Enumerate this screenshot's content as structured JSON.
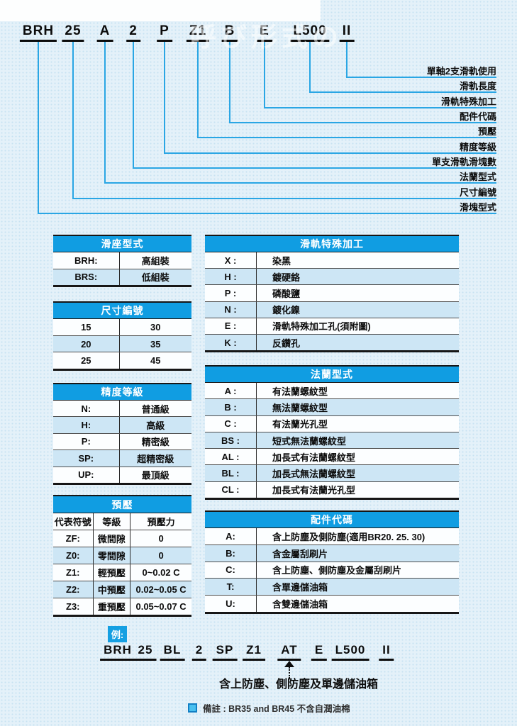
{
  "watermark": "呼び形式の",
  "model_code": {
    "segments": [
      {
        "code": "BRH",
        "label": "滑塊型式"
      },
      {
        "code": "25",
        "label": "尺寸編號"
      },
      {
        "code": "A",
        "label": "法蘭型式"
      },
      {
        "code": "2",
        "label": "單支滑軌滑塊數"
      },
      {
        "code": "P",
        "label": "精度等級"
      },
      {
        "code": "Z1",
        "label": "預壓"
      },
      {
        "code": "B",
        "label": "配件代碼"
      },
      {
        "code": "E",
        "label": "滑軌特殊加工"
      },
      {
        "code": "L500",
        "label": "滑軌長度"
      },
      {
        "code": "II",
        "label": "單軸2支滑軌使用"
      }
    ]
  },
  "tables": {
    "left": [
      {
        "key": "slider-type",
        "title": "滑座型式",
        "rows": [
          [
            "BRH:",
            "高組裝"
          ],
          [
            "BRS:",
            "低組裝"
          ]
        ]
      },
      {
        "key": "size-number",
        "title": "尺寸編號",
        "rows": [
          [
            "15",
            "30"
          ],
          [
            "20",
            "35"
          ],
          [
            "25",
            "45"
          ]
        ]
      },
      {
        "key": "accuracy-grade",
        "title": "精度等級",
        "rows": [
          [
            "N:",
            "普通級"
          ],
          [
            "H:",
            "高級"
          ],
          [
            "P:",
            "精密級"
          ],
          [
            "SP:",
            "超精密級"
          ],
          [
            "UP:",
            "最頂級"
          ]
        ]
      },
      {
        "key": "preload",
        "title": "預壓",
        "col_headers": [
          "代表符號",
          "等級",
          "預壓力"
        ],
        "rows": [
          [
            "ZF:",
            "微間隙",
            "0"
          ],
          [
            "Z0:",
            "零間隙",
            "0"
          ],
          [
            "Z1:",
            "輕預壓",
            "0~0.02 C"
          ],
          [
            "Z2:",
            "中預壓",
            "0.02~0.05 C"
          ],
          [
            "Z3:",
            "重預壓",
            "0.05~0.07 C"
          ]
        ]
      }
    ],
    "right": [
      {
        "key": "rail-special-machining",
        "title": "滑軌特殊加工",
        "rows": [
          [
            "X :",
            "染黑"
          ],
          [
            "H :",
            "鍍硬鉻"
          ],
          [
            "P :",
            "磷酸鹽"
          ],
          [
            "N :",
            "鍍化鎳"
          ],
          [
            "E :",
            "滑軌特殊加工孔(須附圖)"
          ],
          [
            "K :",
            "反鑽孔"
          ]
        ]
      },
      {
        "key": "flange-type",
        "title": "法蘭型式",
        "rows": [
          [
            "A :",
            "有法蘭螺紋型"
          ],
          [
            "B :",
            "無法蘭螺紋型"
          ],
          [
            "C :",
            "有法蘭光孔型"
          ],
          [
            "BS :",
            "短式無法蘭螺紋型"
          ],
          [
            "AL :",
            "加長式有法蘭螺紋型"
          ],
          [
            "BL :",
            "加長式無法蘭螺紋型"
          ],
          [
            "CL :",
            "加長式有法蘭光孔型"
          ]
        ]
      },
      {
        "key": "accessory-code",
        "title": "配件代碼",
        "rows": [
          [
            "A:",
            "含上防塵及側防塵(適用BR20. 25. 30)"
          ],
          [
            "B:",
            "含金屬刮刷片"
          ],
          [
            "C:",
            "含上防塵、側防塵及金屬刮刷片"
          ],
          [
            "T:",
            "含單邊儲油箱"
          ],
          [
            "U:",
            "含雙邊儲油箱"
          ]
        ]
      }
    ]
  },
  "example": {
    "badge": "例:",
    "codes": [
      "BRH",
      "25",
      "BL",
      "2",
      "SP",
      "Z1",
      "AT",
      "E",
      "L500",
      "II"
    ],
    "pointer_code": "AT",
    "caption": "含上防塵、側防塵及單邊儲油箱"
  },
  "note": {
    "text": "備註 : BR35 and BR45 不含自潤油棉"
  },
  "colors": {
    "accent": "#109de2",
    "connector_line": "#2aa6e4",
    "row_alt": "#cde6f5",
    "page_bg": "#e4f1f9"
  }
}
